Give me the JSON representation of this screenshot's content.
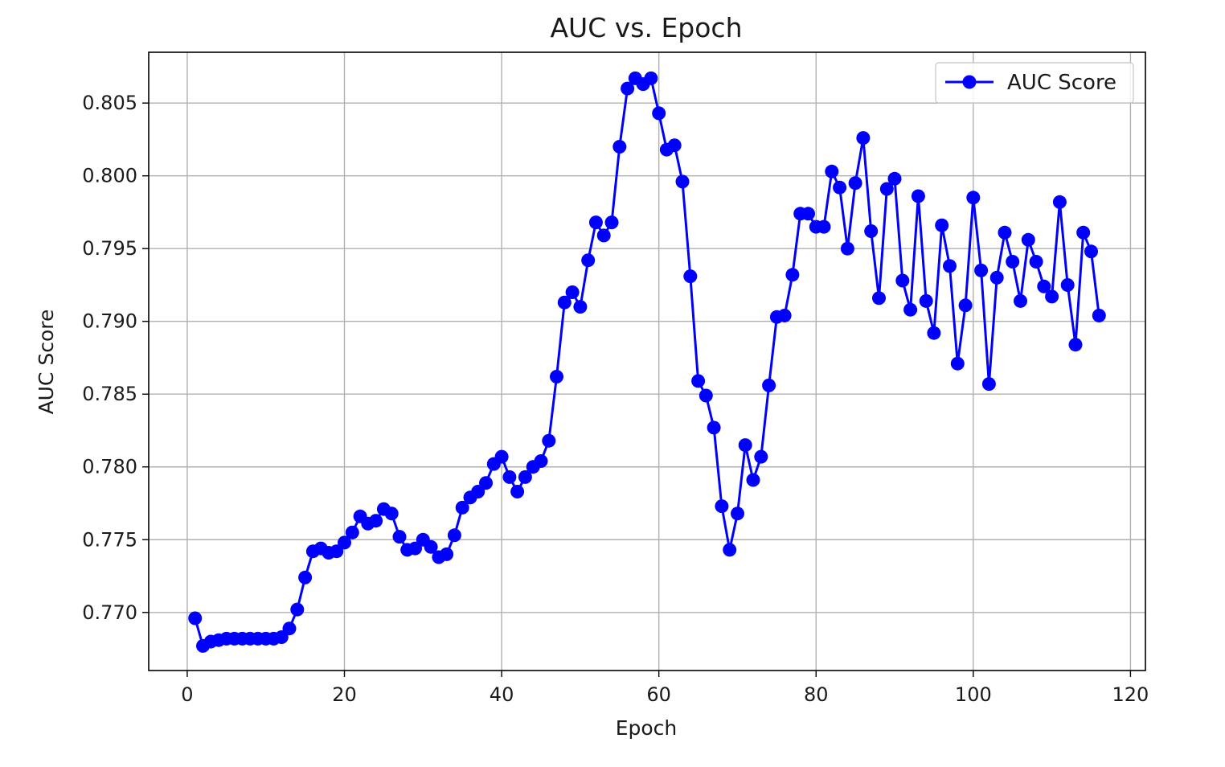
{
  "chart_data": {
    "type": "line",
    "title": "AUC vs. Epoch",
    "xlabel": "Epoch",
    "ylabel": "AUC Score",
    "xlim": [
      -4.9,
      121.9
    ],
    "ylim": [
      0.76601,
      0.80849
    ],
    "xticks": [
      0,
      20,
      40,
      60,
      80,
      100,
      120
    ],
    "yticks": [
      0.77,
      0.775,
      0.78,
      0.785,
      0.79,
      0.795,
      0.8,
      0.805
    ],
    "xtick_labels": [
      "0",
      "20",
      "40",
      "60",
      "80",
      "100",
      "120"
    ],
    "ytick_labels": [
      "0.770",
      "0.775",
      "0.780",
      "0.785",
      "0.790",
      "0.795",
      "0.800",
      "0.805"
    ],
    "grid": true,
    "legend_position": "top-right",
    "series": [
      {
        "name": "AUC Score",
        "color": "#0000ff",
        "marker": "circle",
        "x": [
          1,
          2,
          3,
          4,
          5,
          6,
          7,
          8,
          9,
          10,
          11,
          12,
          13,
          14,
          15,
          16,
          17,
          18,
          19,
          20,
          21,
          22,
          23,
          24,
          25,
          26,
          27,
          28,
          29,
          30,
          31,
          32,
          33,
          34,
          35,
          36,
          37,
          38,
          39,
          40,
          41,
          42,
          43,
          44,
          45,
          46,
          47,
          48,
          49,
          50,
          51,
          52,
          53,
          54,
          55,
          56,
          57,
          58,
          59,
          60,
          61,
          62,
          63,
          64,
          65,
          66,
          67,
          68,
          69,
          70,
          71,
          72,
          73,
          74,
          75,
          76,
          77,
          78,
          79,
          80,
          81,
          82,
          83,
          84,
          85,
          86,
          87,
          88,
          89,
          90,
          91,
          92,
          93,
          94,
          95,
          96,
          97,
          98,
          99,
          100,
          101,
          102,
          103,
          104,
          105,
          106,
          107,
          108,
          109,
          110,
          111,
          112,
          113,
          114,
          115,
          116
        ],
        "y": [
          0.7696,
          0.7677,
          0.768,
          0.7681,
          0.7682,
          0.7682,
          0.7682,
          0.7682,
          0.7682,
          0.7682,
          0.7682,
          0.7683,
          0.7689,
          0.7702,
          0.7724,
          0.7742,
          0.7744,
          0.7741,
          0.7742,
          0.7748,
          0.7755,
          0.7766,
          0.7761,
          0.7763,
          0.7771,
          0.7768,
          0.7752,
          0.7743,
          0.7744,
          0.775,
          0.7745,
          0.7738,
          0.774,
          0.7753,
          0.7772,
          0.7779,
          0.7783,
          0.7789,
          0.7802,
          0.7807,
          0.7793,
          0.7783,
          0.7793,
          0.78,
          0.7804,
          0.7818,
          0.7862,
          0.7913,
          0.792,
          0.791,
          0.7942,
          0.7968,
          0.7959,
          0.7968,
          0.802,
          0.806,
          0.8067,
          0.8063,
          0.8067,
          0.8043,
          0.8018,
          0.8021,
          0.7996,
          0.7931,
          0.7859,
          0.7849,
          0.7827,
          0.7773,
          0.7743,
          0.7768,
          0.7815,
          0.7791,
          0.7807,
          0.7856,
          0.7903,
          0.7904,
          0.7932,
          0.7974,
          0.7974,
          0.7965,
          0.7965,
          0.8003,
          0.7992,
          0.795,
          0.7995,
          0.8026,
          0.7962,
          0.7916,
          0.7991,
          0.7998,
          0.7928,
          0.7908,
          0.7986,
          0.7914,
          0.7892,
          0.7966,
          0.7938,
          0.7871,
          0.7911,
          0.7985,
          0.7935,
          0.7857,
          0.793,
          0.7961,
          0.7941,
          0.7914,
          0.7956,
          0.7941,
          0.7924,
          0.7917,
          0.7982,
          0.7925,
          0.7884,
          0.7961,
          0.7948,
          0.7904
        ]
      }
    ]
  }
}
